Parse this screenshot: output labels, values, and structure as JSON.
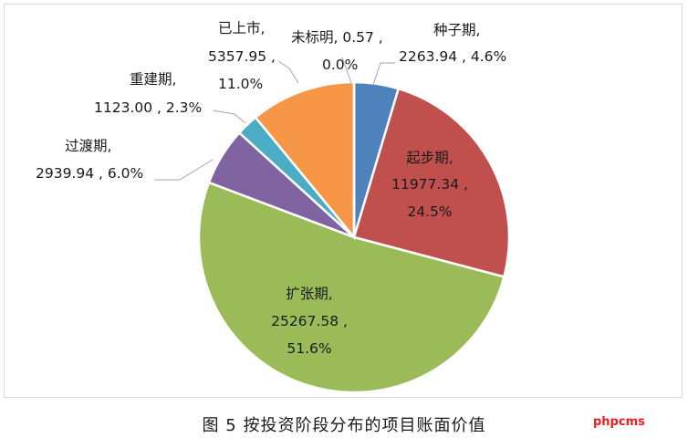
{
  "chart_data": {
    "type": "pie",
    "title": "",
    "slices": [
      {
        "name": "种子期",
        "value": 2263.94,
        "percent": "4.6%",
        "color": "#4f81bd"
      },
      {
        "name": "起步期",
        "value": 11977.34,
        "percent": "24.5%",
        "color": "#c0504d"
      },
      {
        "name": "扩张期",
        "value": 25267.58,
        "percent": "51.6%",
        "color": "#9bbb59"
      },
      {
        "name": "过渡期",
        "value": 2939.94,
        "percent": "6.0%",
        "color": "#8064a2"
      },
      {
        "name": "重建期",
        "value": 1123.0,
        "percent": "2.3%",
        "color": "#4bacc6"
      },
      {
        "name": "已上市",
        "value": 5357.95,
        "percent": "11.0%",
        "color": "#f79646"
      },
      {
        "name": "未标明",
        "value": 0.57,
        "percent": "0.0%",
        "color": "#2c4d75"
      }
    ],
    "labels": {
      "seed_l1": "种子期,",
      "seed_l2": "2263.94 , 4.6%",
      "start_l1": "起步期,",
      "start_l2": "11977.34 ,",
      "start_l3": "24.5%",
      "exp_l1": "扩张期,",
      "exp_l2": "25267.58 ,",
      "exp_l3": "51.6%",
      "trans_l1": "过渡期,",
      "trans_l2": "2939.94 , 6.0%",
      "rebuild_l1": "重建期,",
      "rebuild_l2": "1123.00 , 2.3%",
      "listed_l1": "已上市,",
      "listed_l2": "5357.95 ,",
      "listed_l3": "11.0%",
      "unmarked_l1": "未标明, 0.57 ,",
      "unmarked_l2": "0.0%"
    }
  },
  "caption": "图 5  按投资阶段分布的项目账面价值",
  "watermark": "phpcms"
}
